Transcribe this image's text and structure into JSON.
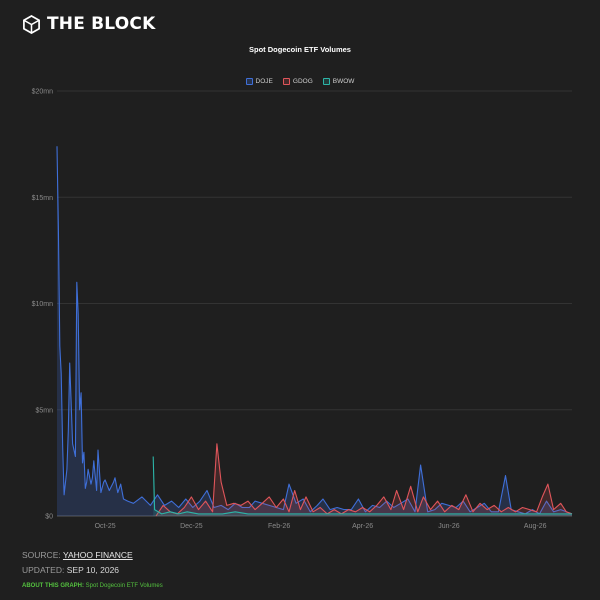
{
  "brand": {
    "name": "THE BLOCK",
    "logo_icon": "cube-logo-icon"
  },
  "chart_data": {
    "type": "area",
    "title": "Spot Dogecoin ETF Volumes",
    "xlabel": "",
    "ylabel": "",
    "ylim": [
      0,
      20
    ],
    "y_ticks": [
      {
        "value": 0,
        "label": "$0"
      },
      {
        "value": 5,
        "label": "$5mn"
      },
      {
        "value": 10,
        "label": "$10mn"
      },
      {
        "value": 15,
        "label": "$15mn"
      },
      {
        "value": 20,
        "label": "$20mn"
      }
    ],
    "x_range": [
      "2025-09-11",
      "2026-09-10"
    ],
    "x_ticks": [
      {
        "date": "2025-10-15",
        "label": "Oct-25"
      },
      {
        "date": "2025-12-15",
        "label": "Dec-25"
      },
      {
        "date": "2026-02-15",
        "label": "Feb-26"
      },
      {
        "date": "2026-04-15",
        "label": "Apr-26"
      },
      {
        "date": "2026-06-15",
        "label": "Jun-26"
      },
      {
        "date": "2026-08-15",
        "label": "Aug-26"
      }
    ],
    "grid": true,
    "legend_position": "top-center",
    "series": [
      {
        "name": "DOJE",
        "color": "#3f6fd8",
        "points": [
          [
            "2025-09-11",
            17.4
          ],
          [
            "2025-09-12",
            13.5
          ],
          [
            "2025-09-13",
            8.0
          ],
          [
            "2025-09-14",
            6.7
          ],
          [
            "2025-09-15",
            3.2
          ],
          [
            "2025-09-16",
            1.0
          ],
          [
            "2025-09-18",
            2.2
          ],
          [
            "2025-09-19",
            4.0
          ],
          [
            "2025-09-20",
            7.2
          ],
          [
            "2025-09-21",
            5.4
          ],
          [
            "2025-09-22",
            3.4
          ],
          [
            "2025-09-24",
            2.8
          ],
          [
            "2025-09-25",
            11.0
          ],
          [
            "2025-09-26",
            9.5
          ],
          [
            "2025-09-27",
            5.0
          ],
          [
            "2025-09-28",
            5.8
          ],
          [
            "2025-09-29",
            2.5
          ],
          [
            "2025-09-30",
            3.0
          ],
          [
            "2025-10-01",
            1.3
          ],
          [
            "2025-10-02",
            1.6
          ],
          [
            "2025-10-03",
            2.2
          ],
          [
            "2025-10-05",
            1.5
          ],
          [
            "2025-10-06",
            1.8
          ],
          [
            "2025-10-07",
            2.6
          ],
          [
            "2025-10-09",
            1.2
          ],
          [
            "2025-10-10",
            3.1
          ],
          [
            "2025-10-12",
            1.1
          ],
          [
            "2025-10-14",
            1.6
          ],
          [
            "2025-10-15",
            1.7
          ],
          [
            "2025-10-18",
            1.2
          ],
          [
            "2025-10-21",
            1.6
          ],
          [
            "2025-10-22",
            1.8
          ],
          [
            "2025-10-24",
            1.1
          ],
          [
            "2025-10-26",
            1.5
          ],
          [
            "2025-10-28",
            0.8
          ],
          [
            "2025-10-31",
            0.7
          ],
          [
            "2025-11-04",
            0.6
          ],
          [
            "2025-11-10",
            0.9
          ],
          [
            "2025-11-16",
            0.5
          ],
          [
            "2025-11-21",
            1.0
          ],
          [
            "2025-11-26",
            0.5
          ],
          [
            "2025-12-01",
            0.7
          ],
          [
            "2025-12-06",
            0.4
          ],
          [
            "2025-12-11",
            0.8
          ],
          [
            "2025-12-16",
            0.4
          ],
          [
            "2025-12-21",
            0.7
          ],
          [
            "2025-12-26",
            1.2
          ],
          [
            "2025-12-31",
            0.4
          ],
          [
            "2026-01-05",
            0.5
          ],
          [
            "2026-01-10",
            0.3
          ],
          [
            "2026-01-15",
            0.6
          ],
          [
            "2026-01-20",
            0.4
          ],
          [
            "2026-01-25",
            0.4
          ],
          [
            "2026-01-29",
            0.7
          ],
          [
            "2026-02-03",
            0.6
          ],
          [
            "2026-02-08",
            0.5
          ],
          [
            "2026-02-13",
            0.4
          ],
          [
            "2026-02-18",
            0.3
          ],
          [
            "2026-02-22",
            1.5
          ],
          [
            "2026-02-27",
            0.6
          ],
          [
            "2026-03-04",
            0.8
          ],
          [
            "2026-03-09",
            0.2
          ],
          [
            "2026-03-14",
            0.5
          ],
          [
            "2026-03-18",
            0.8
          ],
          [
            "2026-03-23",
            0.3
          ],
          [
            "2026-03-28",
            0.4
          ],
          [
            "2026-04-02",
            0.3
          ],
          [
            "2026-04-07",
            0.3
          ],
          [
            "2026-04-12",
            0.8
          ],
          [
            "2026-04-17",
            0.2
          ],
          [
            "2026-04-22",
            0.5
          ],
          [
            "2026-04-27",
            0.4
          ],
          [
            "2026-05-02",
            0.7
          ],
          [
            "2026-05-07",
            0.4
          ],
          [
            "2026-05-12",
            0.6
          ],
          [
            "2026-05-17",
            0.8
          ],
          [
            "2026-05-22",
            0.2
          ],
          [
            "2026-05-26",
            2.4
          ],
          [
            "2026-05-31",
            0.2
          ],
          [
            "2026-06-05",
            0.3
          ],
          [
            "2026-06-10",
            0.6
          ],
          [
            "2026-06-15",
            0.5
          ],
          [
            "2026-06-20",
            0.4
          ],
          [
            "2026-06-25",
            0.7
          ],
          [
            "2026-06-30",
            0.2
          ],
          [
            "2026-07-05",
            0.4
          ],
          [
            "2026-07-10",
            0.6
          ],
          [
            "2026-07-15",
            0.2
          ],
          [
            "2026-07-20",
            0.2
          ],
          [
            "2026-07-25",
            1.9
          ],
          [
            "2026-07-29",
            0.3
          ],
          [
            "2026-08-03",
            0.2
          ],
          [
            "2026-08-08",
            0.1
          ],
          [
            "2026-08-13",
            0.3
          ],
          [
            "2026-08-18",
            0.1
          ],
          [
            "2026-08-23",
            0.7
          ],
          [
            "2026-08-28",
            0.2
          ],
          [
            "2026-09-02",
            0.3
          ],
          [
            "2026-09-10",
            0.1
          ]
        ]
      },
      {
        "name": "GDOG",
        "color": "#e0555a",
        "points": [
          [
            "2025-11-20",
            0.0
          ],
          [
            "2025-11-25",
            0.5
          ],
          [
            "2025-11-30",
            0.2
          ],
          [
            "2025-12-05",
            0.1
          ],
          [
            "2025-12-10",
            0.4
          ],
          [
            "2025-12-15",
            0.9
          ],
          [
            "2025-12-20",
            0.3
          ],
          [
            "2025-12-25",
            0.7
          ],
          [
            "2025-12-30",
            0.2
          ],
          [
            "2026-01-02",
            3.4
          ],
          [
            "2026-01-05",
            1.6
          ],
          [
            "2026-01-09",
            0.5
          ],
          [
            "2026-01-14",
            0.6
          ],
          [
            "2026-01-19",
            0.5
          ],
          [
            "2026-01-24",
            0.7
          ],
          [
            "2026-01-29",
            0.3
          ],
          [
            "2026-02-03",
            0.6
          ],
          [
            "2026-02-08",
            0.9
          ],
          [
            "2026-02-13",
            0.4
          ],
          [
            "2026-02-18",
            0.8
          ],
          [
            "2026-02-22",
            0.2
          ],
          [
            "2026-02-26",
            1.2
          ],
          [
            "2026-03-02",
            0.3
          ],
          [
            "2026-03-06",
            0.9
          ],
          [
            "2026-03-11",
            0.2
          ],
          [
            "2026-03-16",
            0.4
          ],
          [
            "2026-03-21",
            0.1
          ],
          [
            "2026-03-26",
            0.3
          ],
          [
            "2026-03-31",
            0.1
          ],
          [
            "2026-04-05",
            0.3
          ],
          [
            "2026-04-10",
            0.2
          ],
          [
            "2026-04-15",
            0.4
          ],
          [
            "2026-04-20",
            0.2
          ],
          [
            "2026-04-25",
            0.5
          ],
          [
            "2026-04-30",
            0.9
          ],
          [
            "2026-05-05",
            0.3
          ],
          [
            "2026-05-09",
            1.2
          ],
          [
            "2026-05-14",
            0.3
          ],
          [
            "2026-05-19",
            1.4
          ],
          [
            "2026-05-24",
            0.2
          ],
          [
            "2026-05-28",
            0.9
          ],
          [
            "2026-06-02",
            0.3
          ],
          [
            "2026-06-07",
            0.7
          ],
          [
            "2026-06-12",
            0.2
          ],
          [
            "2026-06-17",
            0.5
          ],
          [
            "2026-06-22",
            0.3
          ],
          [
            "2026-06-27",
            1.0
          ],
          [
            "2026-07-02",
            0.2
          ],
          [
            "2026-07-07",
            0.6
          ],
          [
            "2026-07-12",
            0.3
          ],
          [
            "2026-07-17",
            0.5
          ],
          [
            "2026-07-22",
            0.2
          ],
          [
            "2026-07-27",
            0.4
          ],
          [
            "2026-08-01",
            0.2
          ],
          [
            "2026-08-06",
            0.4
          ],
          [
            "2026-08-11",
            0.3
          ],
          [
            "2026-08-16",
            0.2
          ],
          [
            "2026-08-20",
            0.9
          ],
          [
            "2026-08-24",
            1.5
          ],
          [
            "2026-08-28",
            0.3
          ],
          [
            "2026-09-02",
            0.6
          ],
          [
            "2026-09-06",
            0.2
          ],
          [
            "2026-09-10",
            0.1
          ]
        ]
      },
      {
        "name": "BWOW",
        "color": "#2cb5a8",
        "points": [
          [
            "2025-11-18",
            2.8
          ],
          [
            "2025-11-19",
            0.3
          ],
          [
            "2025-11-24",
            0.1
          ],
          [
            "2025-11-30",
            0.2
          ],
          [
            "2025-12-06",
            0.1
          ],
          [
            "2025-12-12",
            0.2
          ],
          [
            "2025-12-20",
            0.1
          ],
          [
            "2025-12-28",
            0.1
          ],
          [
            "2026-01-06",
            0.1
          ],
          [
            "2026-01-15",
            0.2
          ],
          [
            "2026-01-24",
            0.1
          ],
          [
            "2026-02-03",
            0.1
          ],
          [
            "2026-02-14",
            0.1
          ],
          [
            "2026-02-26",
            0.1
          ],
          [
            "2026-03-10",
            0.1
          ],
          [
            "2026-03-22",
            0.1
          ],
          [
            "2026-04-04",
            0.1
          ],
          [
            "2026-04-18",
            0.1
          ],
          [
            "2026-05-02",
            0.1
          ],
          [
            "2026-05-16",
            0.1
          ],
          [
            "2026-05-30",
            0.1
          ],
          [
            "2026-06-14",
            0.1
          ],
          [
            "2026-06-28",
            0.1
          ],
          [
            "2026-07-12",
            0.1
          ],
          [
            "2026-07-26",
            0.1
          ],
          [
            "2026-08-09",
            0.1
          ],
          [
            "2026-08-23",
            0.1
          ],
          [
            "2026-09-10",
            0.1
          ]
        ]
      }
    ]
  },
  "footer": {
    "source_label": "SOURCE:",
    "source_value": "YAHOO FINANCE",
    "updated_label": "UPDATED:",
    "updated_value": "SEP 10, 2026",
    "about_label": "ABOUT THIS GRAPH:",
    "about_text": "Spot Dogecoin ETF Volumes"
  }
}
